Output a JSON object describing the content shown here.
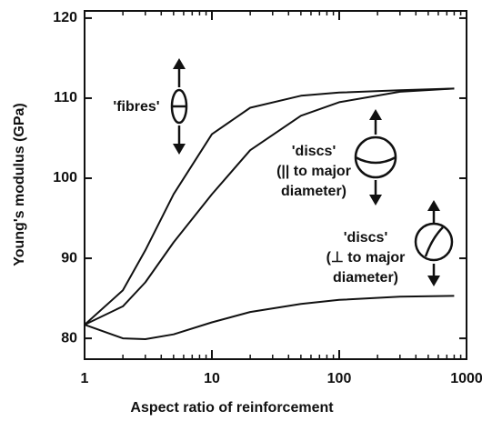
{
  "chart_data": {
    "type": "line",
    "x_label": "Aspect ratio of reinforcement",
    "y_label": "Young's modulus (GPa)",
    "x": [
      1,
      2,
      3,
      5,
      10,
      20,
      50,
      100,
      300,
      800
    ],
    "series": [
      {
        "color": "#111111",
        "values": [
          81.7,
          86,
          91,
          98,
          105.5,
          108.8,
          110.3,
          110.7,
          111,
          111.2
        ]
      },
      {
        "color": "#111111",
        "values": [
          81.7,
          84,
          87,
          92,
          98,
          103.5,
          107.8,
          109.5,
          110.8,
          111.2
        ]
      },
      {
        "color": "#111111",
        "values": [
          81.7,
          80,
          79.9,
          80.5,
          82,
          83.3,
          84.3,
          84.8,
          85.2,
          85.3
        ]
      }
    ],
    "xlim": [
      1,
      1000
    ],
    "xticks": [
      1,
      10,
      100,
      1000
    ],
    "xscale": "log",
    "ylim": [
      77.4,
      120.9
    ],
    "yticks": [
      80,
      90,
      100,
      110,
      120
    ],
    "annotations": [
      {
        "lines": [
          "'fibres'"
        ]
      },
      {
        "lines": [
          "'discs'",
          "(|| to major",
          "diameter)"
        ]
      },
      {
        "lines": [
          "'discs'",
          "(⊥ to major",
          "diameter)"
        ]
      }
    ]
  }
}
